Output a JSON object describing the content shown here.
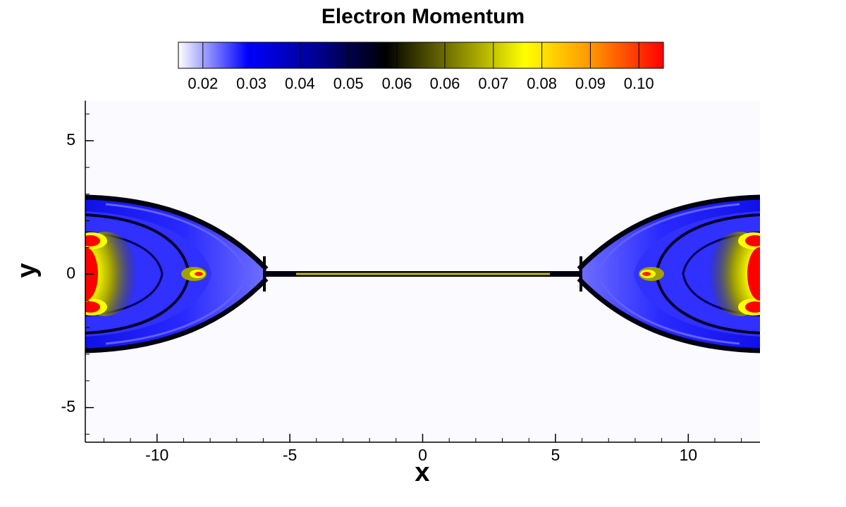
{
  "chart_data": {
    "type": "contour",
    "title": "Electron Momentum",
    "xlabel": "x",
    "ylabel": "y",
    "xlim": [
      -12.7,
      12.7
    ],
    "ylim": [
      -6.3,
      6.5
    ],
    "xticks": [
      -10,
      -5,
      0,
      5,
      10
    ],
    "yticks": [
      -5,
      0,
      5
    ],
    "colorbar": {
      "clim": [
        0.0155,
        0.1045
      ],
      "levels": [
        0.02,
        {
          "value": 0.0289,
          "label": "0.03"
        },
        {
          "value": 0.0378,
          "label": "0.04"
        },
        {
          "value": 0.0467,
          "label": "0.05"
        },
        {
          "value": 0.0556,
          "label": "0.06"
        },
        {
          "value": 0.0644,
          "label": "0.06"
        },
        {
          "value": 0.0733,
          "label": "0.07"
        },
        {
          "value": 0.0822,
          "label": "0.08"
        },
        {
          "value": 0.0911,
          "label": "0.09"
        },
        {
          "value": 0.1,
          "label": "0.10"
        }
      ],
      "colormap": [
        "#ffffff",
        "#0000ff",
        "#000090",
        "#000000",
        "#808000",
        "#ffff00",
        "#ff9000",
        "#ff0000"
      ]
    }
  }
}
